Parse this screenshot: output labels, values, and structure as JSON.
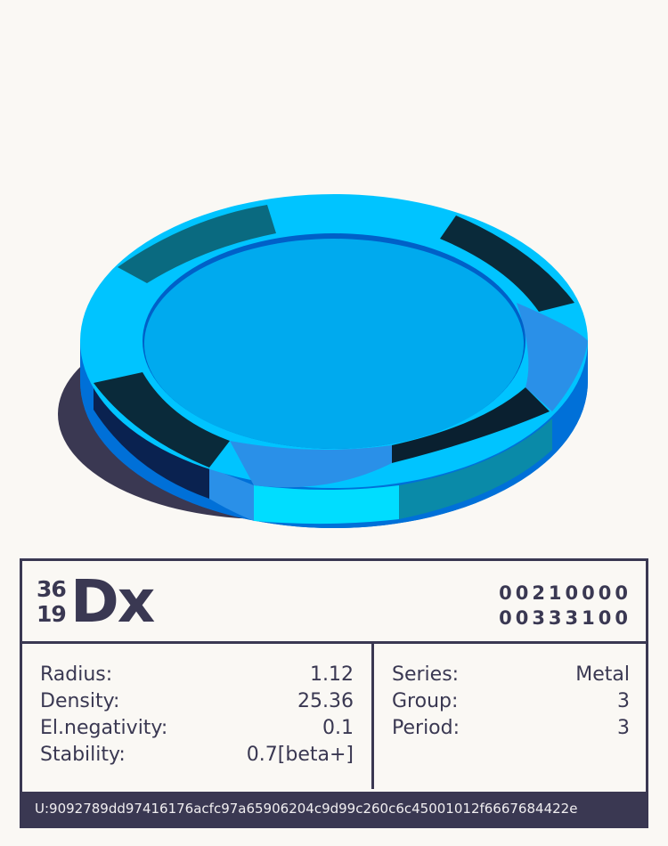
{
  "element": {
    "mass_number": "36",
    "atomic_number": "19",
    "symbol": "Dx",
    "code_line_1": "00210000",
    "code_line_2": "00333100",
    "properties_left": [
      {
        "label": "Radius:",
        "value": "1.12"
      },
      {
        "label": "Density:",
        "value": "25.36"
      },
      {
        "label": "El.negativity:",
        "value": "0.1"
      },
      {
        "label": "Stability:",
        "value": "0.7[beta+]"
      }
    ],
    "properties_right": [
      {
        "label": "Series:",
        "value": "Metal"
      },
      {
        "label": "Group:",
        "value": "3"
      },
      {
        "label": "Period:",
        "value": "3"
      }
    ],
    "uid": "U:9092789dd97416176acfc97a65906204c9d99c260c6c45001012f6667684422e"
  },
  "colors": {
    "frame": "#3a3852",
    "chip_face": "#00aaee",
    "chip_ring": "#00c4ff",
    "chip_dark": "#0a2a3a"
  }
}
